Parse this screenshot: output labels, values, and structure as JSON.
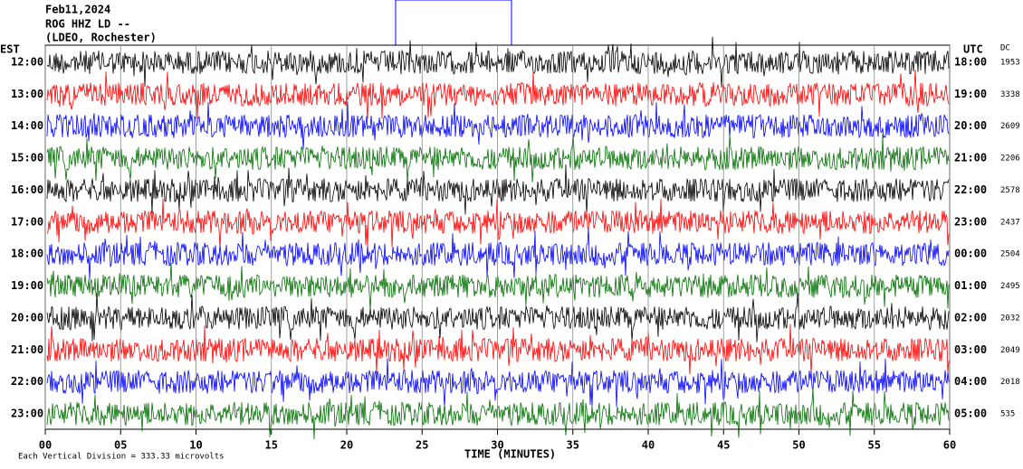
{
  "header": {
    "date": "Feb11,2024",
    "station": "ROG HHZ LD --",
    "location": "(LDEO, Rochester)"
  },
  "left_axis_title": "EST",
  "right_axis_title": "UTC",
  "dc_title": "DC",
  "rows": [
    {
      "est": "12:00",
      "utc": "18:00",
      "dc": "1953",
      "color": "#000000"
    },
    {
      "est": "13:00",
      "utc": "19:00",
      "dc": "3338",
      "color": "#ff0000"
    },
    {
      "est": "14:00",
      "utc": "20:00",
      "dc": "2609",
      "color": "#0000ff"
    },
    {
      "est": "15:00",
      "utc": "21:00",
      "dc": "2206",
      "color": "#007000"
    },
    {
      "est": "16:00",
      "utc": "22:00",
      "dc": "2578",
      "color": "#000000"
    },
    {
      "est": "17:00",
      "utc": "23:00",
      "dc": "2437",
      "color": "#ff0000"
    },
    {
      "est": "18:00",
      "utc": "00:00",
      "dc": "2504",
      "color": "#0000ff"
    },
    {
      "est": "19:00",
      "utc": "01:00",
      "dc": "2495",
      "color": "#007000"
    },
    {
      "est": "20:00",
      "utc": "02:00",
      "dc": "2032",
      "color": "#000000"
    },
    {
      "est": "21:00",
      "utc": "03:00",
      "dc": "2049",
      "color": "#ff0000"
    },
    {
      "est": "22:00",
      "utc": "04:00",
      "dc": "2018",
      "color": "#0000ff"
    },
    {
      "est": "23:00",
      "utc": "05:00",
      "dc": "535",
      "color": "#007000"
    }
  ],
  "xlim": [
    0,
    60
  ],
  "xticks": [
    {
      "value": 0,
      "label": "00"
    },
    {
      "value": 5,
      "label": "05"
    },
    10,
    15,
    20,
    25,
    30,
    35,
    40,
    45,
    50,
    55,
    60
  ],
  "x_axis_title": "TIME (MINUTES)",
  "footer": "Each Vertical Division =  333.33 microvolts"
}
